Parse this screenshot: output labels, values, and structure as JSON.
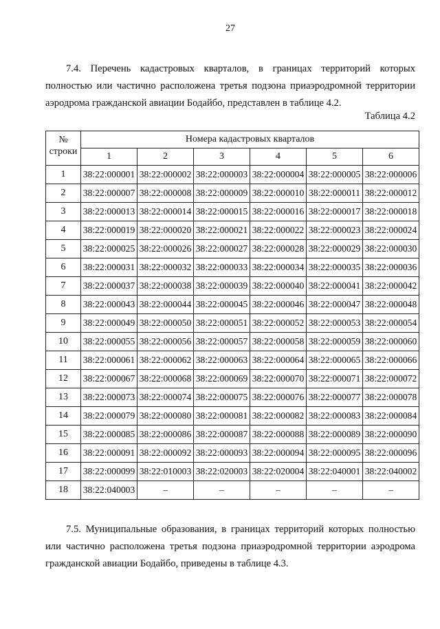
{
  "page_number": "27",
  "paragraph_1": "7.4. Перечень кадастровых кварталов, в границах территорий которых полностью или частично расположена третья подзона приаэродромной территории аэродрома гражданской авиации Бодайбо, представлен в таблице 4.2.",
  "table_caption": "Таблица 4.2",
  "table": {
    "row_no_header": "№ строки",
    "group_header": "Номера кадастровых кварталов",
    "column_headers": [
      "1",
      "2",
      "3",
      "4",
      "5",
      "6"
    ],
    "rows": [
      [
        "1",
        "38:22:000001",
        "38:22:000002",
        "38:22:000003",
        "38:22:000004",
        "38:22:000005",
        "38:22:000006"
      ],
      [
        "2",
        "38:22:000007",
        "38:22:000008",
        "38:22:000009",
        "38:22:000010",
        "38:22:000011",
        "38:22:000012"
      ],
      [
        "3",
        "38:22:000013",
        "38:22:000014",
        "38:22:000015",
        "38:22:000016",
        "38:22:000017",
        "38:22:000018"
      ],
      [
        "4",
        "38:22:000019",
        "38:22:000020",
        "38:22:000021",
        "38:22:000022",
        "38:22:000023",
        "38:22:000024"
      ],
      [
        "5",
        "38:22:000025",
        "38:22:000026",
        "38:22:000027",
        "38:22:000028",
        "38:22:000029",
        "38:22:000030"
      ],
      [
        "6",
        "38:22:000031",
        "38:22:000032",
        "38:22:000033",
        "38:22:000034",
        "38:22:000035",
        "38:22:000036"
      ],
      [
        "7",
        "38:22:000037",
        "38:22:000038",
        "38:22:000039",
        "38:22:000040",
        "38:22:000041",
        "38:22:000042"
      ],
      [
        "8",
        "38:22:000043",
        "38:22:000044",
        "38:22:000045",
        "38:22:000046",
        "38:22:000047",
        "38:22:000048"
      ],
      [
        "9",
        "38:22:000049",
        "38:22:000050",
        "38:22:000051",
        "38:22:000052",
        "38:22:000053",
        "38:22:000054"
      ],
      [
        "10",
        "38:22:000055",
        "38:22:000056",
        "38:22:000057",
        "38:22:000058",
        "38:22:000059",
        "38:22:000060"
      ],
      [
        "11",
        "38:22:000061",
        "38:22:000062",
        "38:22:000063",
        "38:22:000064",
        "38:22:000065",
        "38:22:000066"
      ],
      [
        "12",
        "38:22:000067",
        "38:22:000068",
        "38:22:000069",
        "38:22:000070",
        "38:22:000071",
        "38:22:000072"
      ],
      [
        "13",
        "38:22:000073",
        "38:22:000074",
        "38:22:000075",
        "38:22:000076",
        "38:22:000077",
        "38:22:000078"
      ],
      [
        "14",
        "38:22:000079",
        "38:22:000080",
        "38:22:000081",
        "38:22:000082",
        "38:22:000083",
        "38:22:000084"
      ],
      [
        "15",
        "38:22:000085",
        "38:22:000086",
        "38:22:000087",
        "38:22:000088",
        "38:22:000089",
        "38:22:000090"
      ],
      [
        "16",
        "38:22:000091",
        "38:22:000092",
        "38:22:000093",
        "38:22:000094",
        "38:22:000095",
        "38:22:000096"
      ],
      [
        "17",
        "38:22:000099",
        "38:22:010003",
        "38:22:020003",
        "38:22:020004",
        "38:22:040001",
        "38:22:040002"
      ],
      [
        "18",
        "38:22:040003",
        "–",
        "–",
        "–",
        "–",
        "–"
      ]
    ]
  },
  "paragraph_2": "7.5. Муниципальные образования, в границах территорий которых полностью или частично расположена третья подзона приаэродромной территории аэродрома гражданской авиации Бодайбо, приведены в таблице 4.3."
}
